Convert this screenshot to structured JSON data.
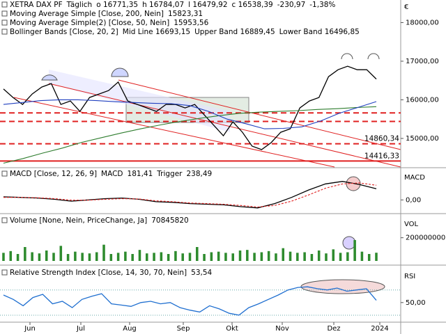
{
  "x_labels": [
    "Jun",
    "Jul",
    "Aug",
    "Sep",
    "Okt",
    "Nov",
    "Dez",
    "2024"
  ],
  "chart_data": [
    {
      "type": "line",
      "title": "XETRA DAX PF",
      "period": "Täglich",
      "quote": [
        "o 16771,35",
        "h 16784,07",
        "l 16479,92",
        "c 16538,39",
        "-230,97",
        "-1,38%"
      ],
      "unit_label": "€",
      "ylim": [
        14260,
        18585
      ],
      "yticks": [
        {
          "value": 15000,
          "label": "15000,00"
        },
        {
          "value": 16000,
          "label": "16000,00"
        },
        {
          "value": 17000,
          "label": "17000,00"
        },
        {
          "value": 18000,
          "label": "18000,00"
        }
      ],
      "series": [
        {
          "name": "XETRA DAX PF",
          "color": "#000000",
          "values": [
            16280,
            16060,
            15880,
            16150,
            16330,
            16420,
            15880,
            15970,
            15700,
            16060,
            16150,
            16240,
            16460,
            15970,
            15880,
            15790,
            15700,
            15880,
            15880,
            15790,
            15880,
            15610,
            15340,
            15070,
            15430,
            15160,
            14800,
            14710,
            14890,
            15160,
            15250,
            15790,
            15970,
            16060,
            16600,
            16780,
            16870,
            16780,
            16780,
            16538
          ]
        },
        {
          "name": "Moving Average Simple [Close, 200, Nein]",
          "value_label": "15823,31",
          "color": "#2e7d2e",
          "values": [
            14360,
            14480,
            14620,
            14750,
            14900,
            15020,
            15140,
            15250,
            15350,
            15440,
            15520,
            15590,
            15650,
            15680,
            15700,
            15720,
            15750,
            15770,
            15800,
            15823
          ]
        },
        {
          "name": "Moving Average Simple(2) [Close, 50, Nein]",
          "value_label": "15953,56",
          "color": "#1f3fbf",
          "values": [
            15880,
            15930,
            15980,
            16000,
            16000,
            15980,
            15950,
            15930,
            15910,
            15900,
            15850,
            15700,
            15500,
            15380,
            15250,
            15260,
            15300,
            15450,
            15650,
            15800,
            15954
          ]
        }
      ],
      "legend_extra": {
        "name": "Bollinger Bands [Close, 20, 2]",
        "items": [
          "Mid Line 16693,15",
          "Upper Band 16889,45",
          "Lower Band 16496,85"
        ]
      },
      "levels": [
        {
          "value": 15660,
          "label": null,
          "style": "dashed"
        },
        {
          "value": 15440,
          "label": null,
          "style": "dashed"
        },
        {
          "value": 14860.34,
          "label": "14860,34",
          "style": "dashed"
        },
        {
          "value": 14416.33,
          "label": "14416,33",
          "style": "solid"
        }
      ]
    },
    {
      "type": "line",
      "title": "MACD [Close, 12, 26, 9]",
      "axis_label": "MACD",
      "ylim": [
        -200,
        500
      ],
      "yticks": [
        {
          "value": 0,
          "label": "0,00"
        }
      ],
      "series": [
        {
          "name": "MACD",
          "value_label": "181,41",
          "color": "#000000",
          "values": [
            50,
            40,
            30,
            10,
            -20,
            0,
            20,
            30,
            10,
            -30,
            -40,
            -60,
            -70,
            -80,
            -110,
            -130,
            -60,
            40,
            160,
            260,
            300,
            250,
            181
          ]
        },
        {
          "name": "Trigger",
          "value_label": "238,49",
          "color": "#e02020",
          "values": [
            40,
            42,
            35,
            20,
            -5,
            -5,
            10,
            20,
            15,
            -15,
            -30,
            -50,
            -60,
            -70,
            -90,
            -115,
            -90,
            -20,
            80,
            190,
            260,
            275,
            238
          ]
        }
      ]
    },
    {
      "type": "bar",
      "title": "Volume [None, Nein, PriceChange, Ja]",
      "axis_label": "VOL",
      "value_label": "70845820",
      "color": "#2e8b2e",
      "ylim": [
        0,
        390000000
      ],
      "yticks": [
        200000000
      ],
      "values": [
        70000000,
        85000000,
        60000000,
        120000000,
        75000000,
        65000000,
        90000000,
        70000000,
        130000000,
        60000000,
        80000000,
        70000000,
        65000000,
        75000000,
        140000000,
        60000000,
        70000000,
        80000000,
        60000000,
        95000000,
        65000000,
        70000000,
        75000000,
        60000000,
        85000000,
        65000000,
        70000000,
        120000000,
        60000000,
        75000000,
        80000000,
        70000000,
        65000000,
        90000000,
        95000000,
        70000000,
        75000000,
        85000000,
        65000000,
        110000000,
        80000000,
        70000000,
        75000000,
        60000000,
        90000000,
        65000000,
        100000000,
        70000000,
        75000000,
        180000000,
        80000000,
        60000000,
        70845820
      ]
    },
    {
      "type": "line",
      "title": "Relative Strength Index [Close, 14, 30, 70, Nein]",
      "axis_label": "RSI",
      "ylim": [
        20,
        105
      ],
      "yticks": [
        {
          "value": 50,
          "label": "50,00"
        }
      ],
      "bands": [
        30,
        70
      ],
      "series": [
        {
          "name": "RSI",
          "value_label": "53,54",
          "color": "#1f6fd0",
          "values": [
            62,
            55,
            45,
            58,
            63,
            48,
            52,
            42,
            55,
            60,
            64,
            48,
            46,
            44,
            50,
            52,
            48,
            50,
            42,
            38,
            35,
            45,
            40,
            33,
            30,
            42,
            48,
            55,
            62,
            70,
            74,
            75,
            72,
            70,
            73,
            68,
            70,
            72,
            53.54
          ]
        }
      ]
    }
  ]
}
